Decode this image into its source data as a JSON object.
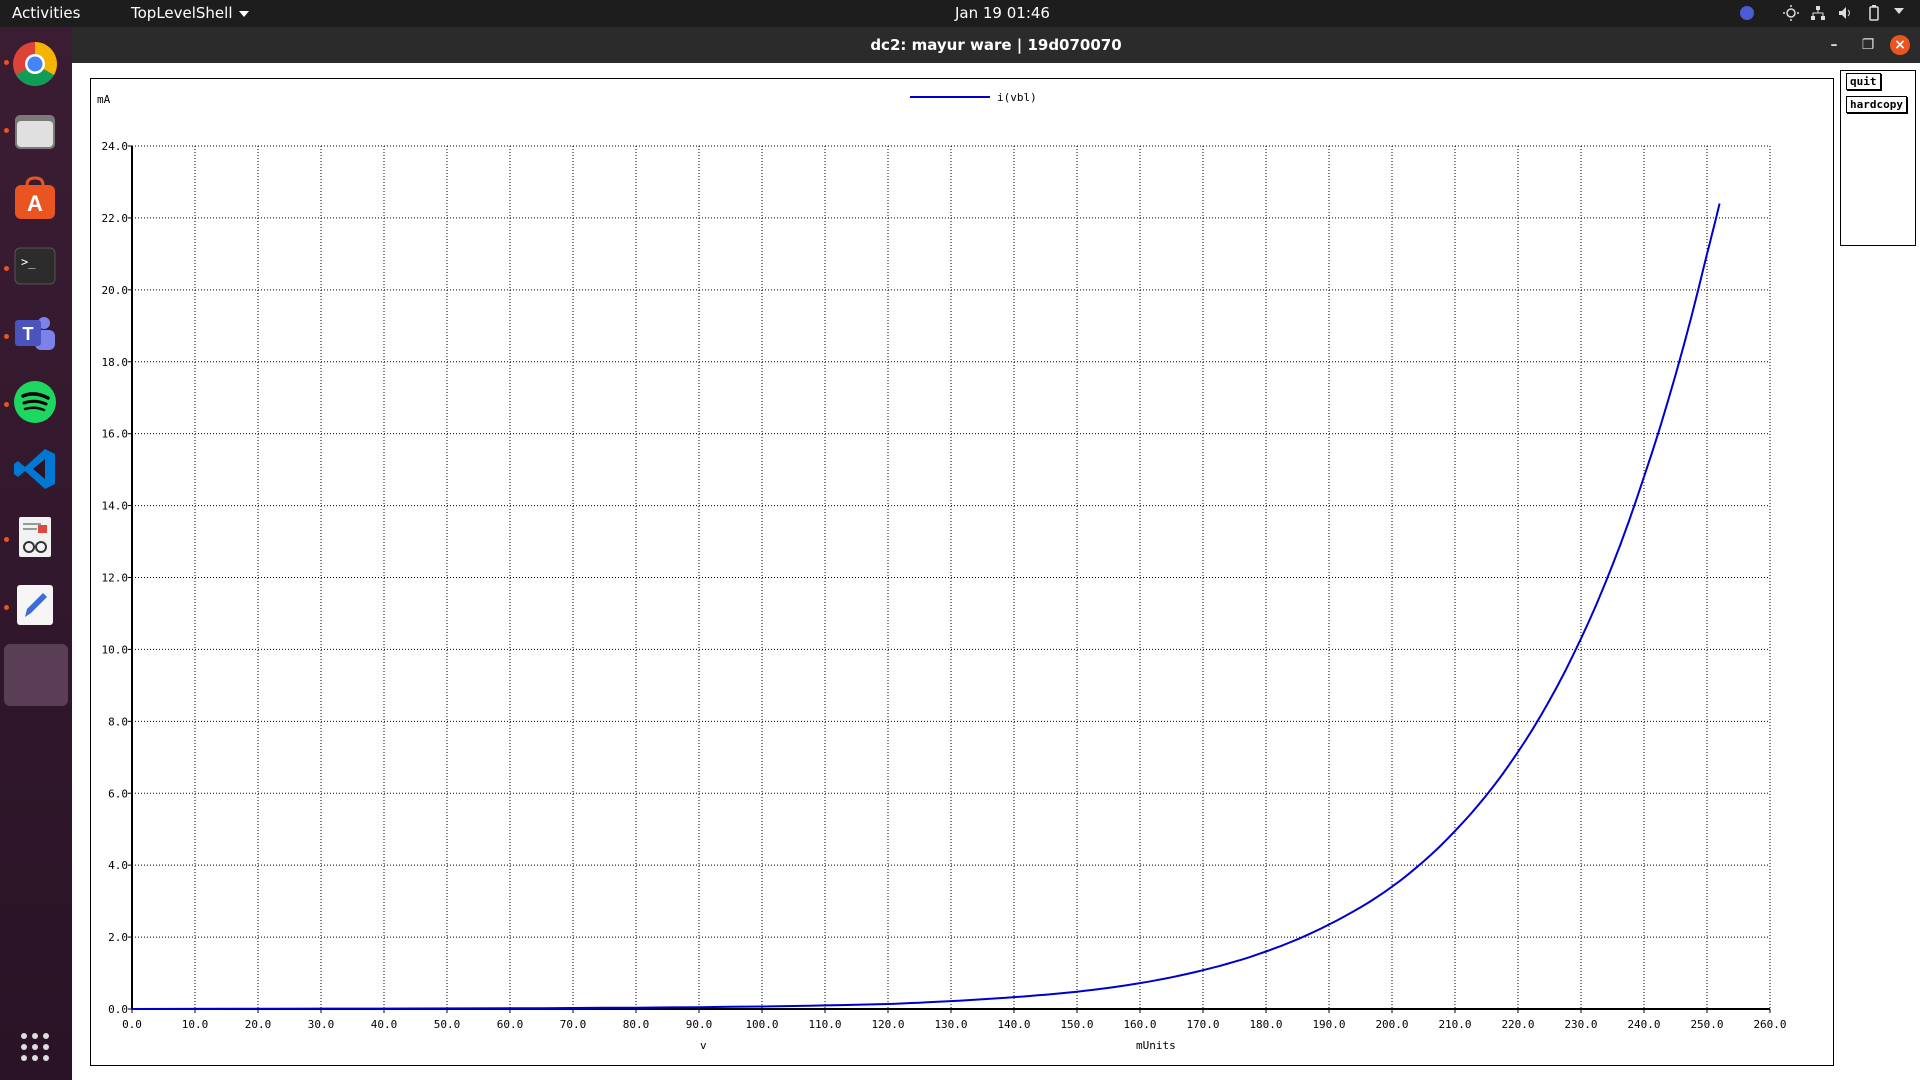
{
  "topbar": {
    "activities": "Activities",
    "app_menu": "TopLevelShell",
    "clock": "Jan 19  01:46"
  },
  "window": {
    "title": "dc2: mayur ware | 19d070070"
  },
  "buttons": {
    "quit": "quit",
    "hardcopy": "hardcopy"
  },
  "dock": {
    "items": [
      "chrome-icon",
      "files-icon",
      "software-center-icon",
      "terminal-icon",
      "teams-icon",
      "spotify-icon",
      "vscode-icon",
      "document-viewer-icon",
      "text-editor-icon",
      "active-app-slot",
      "show-apps-icon"
    ]
  },
  "chart_data": {
    "type": "line",
    "ylabel": "mA",
    "xlabel_left": "v",
    "xlabel_units": "mUnits",
    "legend": "i(vbl)",
    "xlim": [
      0,
      260
    ],
    "ylim": [
      0,
      24
    ],
    "x_ticks": [
      "0.0",
      "10.0",
      "20.0",
      "30.0",
      "40.0",
      "50.0",
      "60.0",
      "70.0",
      "80.0",
      "90.0",
      "100.0",
      "110.0",
      "120.0",
      "130.0",
      "140.0",
      "150.0",
      "160.0",
      "170.0",
      "180.0",
      "190.0",
      "200.0",
      "210.0",
      "220.0",
      "230.0",
      "240.0",
      "250.0",
      "260.0"
    ],
    "y_ticks": [
      "0.0",
      "2.0",
      "4.0",
      "6.0",
      "8.0",
      "10.0",
      "12.0",
      "14.0",
      "16.0",
      "18.0",
      "20.0",
      "22.0",
      "24.0"
    ],
    "grid": true,
    "line_color": "#0000cc",
    "series": [
      {
        "name": "i(vbl)",
        "x": [
          0,
          60,
          100,
          120,
          130,
          140,
          150,
          160,
          170,
          180,
          190,
          200,
          210,
          220,
          230,
          240,
          250,
          252
        ],
        "y": [
          0.0,
          0.02,
          0.07,
          0.14,
          0.22,
          0.33,
          0.48,
          0.72,
          1.08,
          1.6,
          2.35,
          3.4,
          4.95,
          7.15,
          10.3,
          14.8,
          21.0,
          22.4
        ]
      }
    ]
  }
}
